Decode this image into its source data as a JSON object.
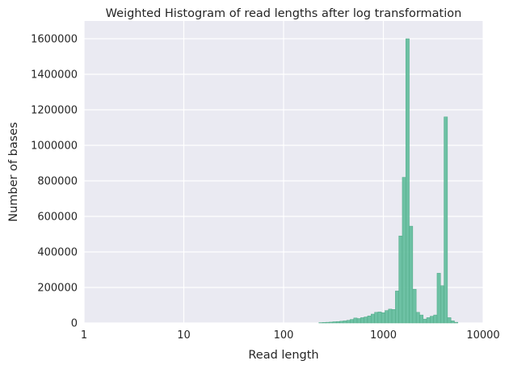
{
  "chart_data": {
    "type": "bar",
    "title": "Weighted Histogram of read lengths after log transformation",
    "xlabel": "Read length",
    "ylabel": "Number of bases",
    "xscale": "log10",
    "xlim": [
      1,
      10000
    ],
    "ylim": [
      0,
      1700000
    ],
    "xticks": [
      "1",
      "10",
      "100",
      "1000",
      "10000"
    ],
    "yticks": [
      "0",
      "200000",
      "400000",
      "600000",
      "800000",
      "1000000",
      "1200000",
      "1400000",
      "1600000"
    ],
    "grid": true,
    "legend": "none",
    "bin_width_log10": 0.035,
    "bins": [
      {
        "x": 235,
        "y": 2000
      },
      {
        "x": 255,
        "y": 3000
      },
      {
        "x": 276,
        "y": 4000
      },
      {
        "x": 299,
        "y": 5000
      },
      {
        "x": 324,
        "y": 7000
      },
      {
        "x": 351,
        "y": 8000
      },
      {
        "x": 381,
        "y": 10000
      },
      {
        "x": 412,
        "y": 12000
      },
      {
        "x": 447,
        "y": 15000
      },
      {
        "x": 484,
        "y": 20000
      },
      {
        "x": 525,
        "y": 28000
      },
      {
        "x": 568,
        "y": 25000
      },
      {
        "x": 616,
        "y": 30000
      },
      {
        "x": 667,
        "y": 34000
      },
      {
        "x": 723,
        "y": 40000
      },
      {
        "x": 783,
        "y": 50000
      },
      {
        "x": 849,
        "y": 60000
      },
      {
        "x": 919,
        "y": 62000
      },
      {
        "x": 996,
        "y": 58000
      },
      {
        "x": 1080,
        "y": 70000
      },
      {
        "x": 1170,
        "y": 78000
      },
      {
        "x": 1267,
        "y": 76000
      },
      {
        "x": 1373,
        "y": 180000
      },
      {
        "x": 1488,
        "y": 490000
      },
      {
        "x": 1612,
        "y": 820000
      },
      {
        "x": 1746,
        "y": 1600000
      },
      {
        "x": 1892,
        "y": 545000
      },
      {
        "x": 2050,
        "y": 190000
      },
      {
        "x": 2221,
        "y": 60000
      },
      {
        "x": 2407,
        "y": 45000
      },
      {
        "x": 2608,
        "y": 22000
      },
      {
        "x": 2826,
        "y": 30000
      },
      {
        "x": 3062,
        "y": 38000
      },
      {
        "x": 3317,
        "y": 45000
      },
      {
        "x": 3594,
        "y": 280000
      },
      {
        "x": 3894,
        "y": 210000
      },
      {
        "x": 4219,
        "y": 1160000
      },
      {
        "x": 4571,
        "y": 30000
      },
      {
        "x": 4953,
        "y": 12000
      },
      {
        "x": 5366,
        "y": 4000
      }
    ],
    "color": "#66bf9f"
  }
}
